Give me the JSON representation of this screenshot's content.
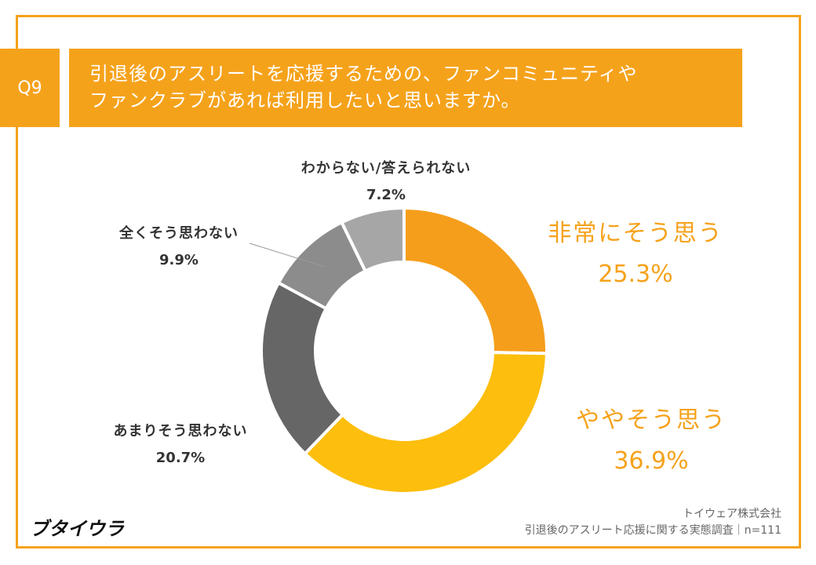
{
  "question": {
    "badge": "Q9",
    "line1": "引退後のアスリートを応援するための、ファンコミュニティや",
    "line2": "ファンクラブがあれば利用したいと思いますか。"
  },
  "chart_data": {
    "type": "pie",
    "donut": true,
    "slices": [
      {
        "label": "非常にそう思う",
        "value": 25.3,
        "display": "25.3%",
        "color": "#F59E1B"
      },
      {
        "label": "ややそう思う",
        "value": 36.9,
        "display": "36.9%",
        "color": "#FDBE0D"
      },
      {
        "label": "あまりそう思わない",
        "value": 20.7,
        "display": "20.7%",
        "color": "#666666"
      },
      {
        "label": "全くそう思わない",
        "value": 9.9,
        "display": "9.9%",
        "color": "#8C8C8C"
      },
      {
        "label": "わからない/答えられない",
        "value": 7.2,
        "display": "7.2%",
        "color": "#A6A6A6"
      }
    ]
  },
  "logo": "ブタイウラ",
  "footer": {
    "company": "トイウェア株式会社",
    "survey": "引退後のアスリート応援に関する実態調査｜n=111"
  },
  "colors": {
    "accent": "#F5A21B",
    "text": "#333333"
  }
}
